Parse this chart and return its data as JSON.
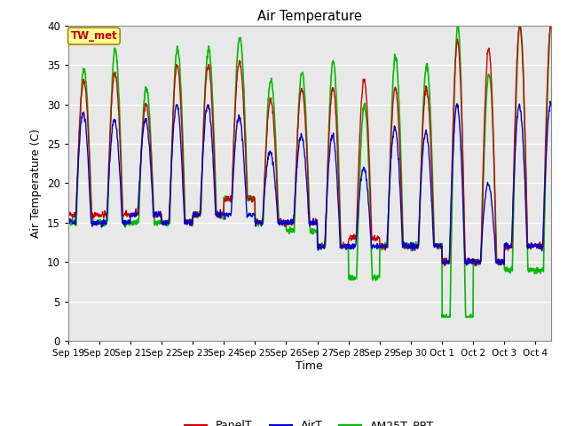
{
  "title": "Air Temperature",
  "xlabel": "Time",
  "ylabel": "Air Temperature (C)",
  "ylim": [
    0,
    40
  ],
  "yticks": [
    0,
    5,
    10,
    15,
    20,
    25,
    30,
    35,
    40
  ],
  "xtick_labels": [
    "Sep 19",
    "Sep 20",
    "Sep 21",
    "Sep 22",
    "Sep 23",
    "Sep 24",
    "Sep 25",
    "Sep 26",
    "Sep 27",
    "Sep 28",
    "Sep 29",
    "Sep 30",
    "Oct 1",
    "Oct 2",
    "Oct 3",
    "Oct 4"
  ],
  "plot_bg": "#e8e8e8",
  "fig_bg": "#ffffff",
  "grid_color": "#ffffff",
  "line_colors": {
    "PanelT": "#cc0000",
    "AirT": "#0000cc",
    "AM25T_PRT": "#00bb00"
  },
  "line_widths": {
    "PanelT": 1.0,
    "AirT": 1.0,
    "AM25T_PRT": 1.2
  },
  "annotation_text": "TW_met",
  "annotation_color": "#cc0000",
  "annotation_bg": "#ffff99",
  "annotation_border": "#aa8800"
}
